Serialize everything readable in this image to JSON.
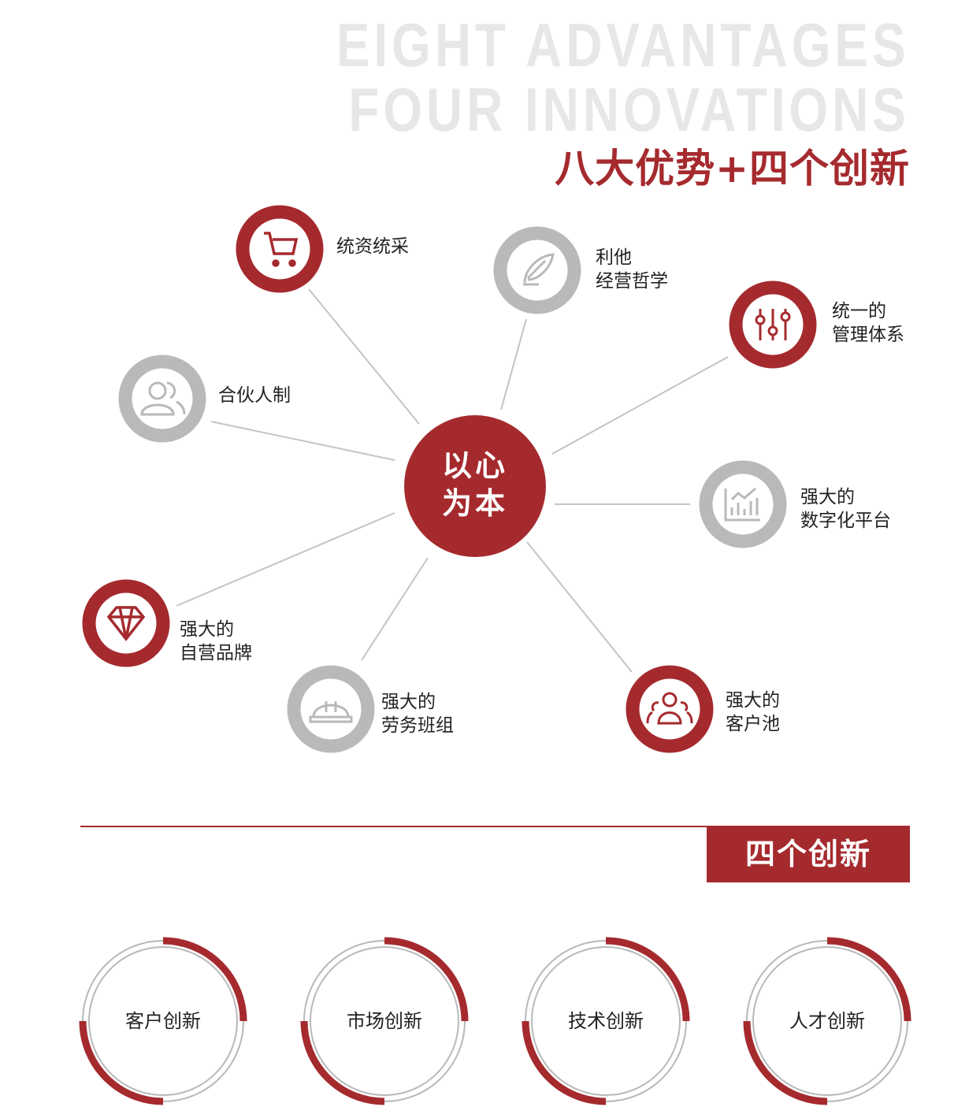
{
  "header": {
    "bg_line1": "EIGHT ADVANTAGES",
    "bg_line2": "FOUR INNOVATIONS",
    "title": "八大优势+四个创新"
  },
  "colors": {
    "accent": "#a52a2e",
    "gray": "#b9b9ba",
    "line": "#c4c4c4"
  },
  "center": {
    "line1": "以心",
    "line2": "为本"
  },
  "nodes": [
    {
      "icon": "cart-icon",
      "color": "red",
      "lines": [
        "统资统采"
      ]
    },
    {
      "icon": "feather-icon",
      "color": "gray",
      "lines": [
        "利他",
        "经营哲学"
      ]
    },
    {
      "icon": "sliders-icon",
      "color": "red",
      "lines": [
        "统一的",
        "管理体系"
      ]
    },
    {
      "icon": "partners-icon",
      "color": "gray",
      "lines": [
        "合伙人制"
      ]
    },
    {
      "icon": "bar-chart-icon",
      "color": "gray",
      "lines": [
        "强大的",
        "数字化平台"
      ]
    },
    {
      "icon": "diamond-icon",
      "color": "red",
      "lines": [
        "强大的",
        "自营品牌"
      ]
    },
    {
      "icon": "hard-hat-icon",
      "color": "gray",
      "lines": [
        "强大的",
        "劳务班组"
      ]
    },
    {
      "icon": "customers-icon",
      "color": "red",
      "lines": [
        "强大的",
        "客户池"
      ]
    }
  ],
  "innovations": {
    "title": "四个创新",
    "items": [
      "客户创新",
      "市场创新",
      "技术创新",
      "人才创新"
    ]
  }
}
